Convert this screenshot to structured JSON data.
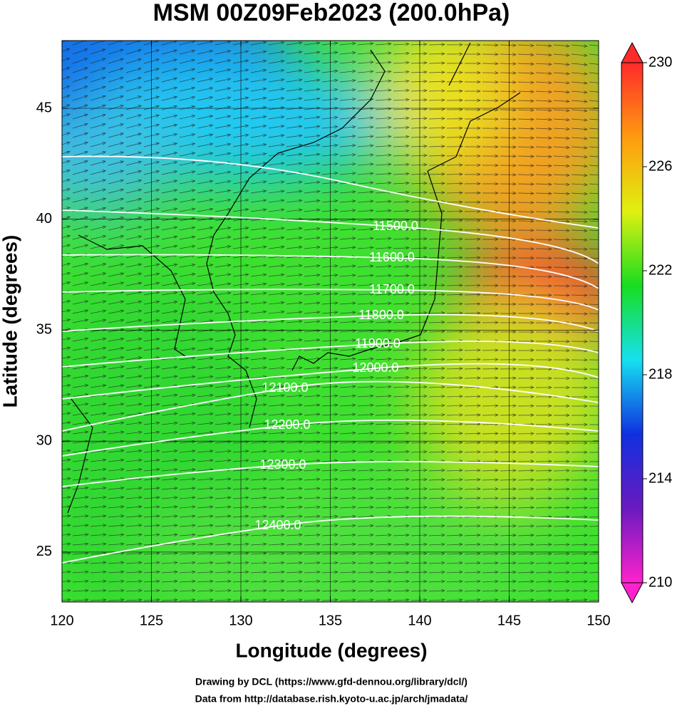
{
  "chart_data": {
    "type": "map",
    "title": "MSM 00Z09Feb2023 (200.0hPa)",
    "x_label": "Longitude (degrees)",
    "y_label": "Latitude  (degrees)",
    "xlim": [
      120,
      150
    ],
    "ylim": [
      22.75,
      48.05
    ],
    "xticks": [
      120,
      125,
      130,
      135,
      140,
      145,
      150
    ],
    "yticks": [
      25,
      30,
      35,
      40,
      45
    ],
    "grid": true,
    "contours": {
      "values": [
        11500,
        11600,
        11700,
        11800,
        11900,
        12000,
        12100,
        12200,
        12300,
        12400
      ],
      "value_labels": [
        "11500.0",
        "11600.0",
        "11700.0",
        "11800.0",
        "11900.0",
        "12000.0",
        "12100.0",
        "12200.0",
        "12300.0",
        "12400.0"
      ],
      "color": "#ffffff"
    },
    "colorbar": {
      "lim": [
        210,
        230
      ],
      "ticks": [
        210,
        214,
        218,
        222,
        226,
        230
      ],
      "colors": [
        "#ff22cc",
        "#6a1ac0",
        "#1030e0",
        "#16e0f0",
        "#18dd20",
        "#e0f010",
        "#ff9a10",
        "#ff2a2a"
      ]
    },
    "footer": [
      "Drawing by DCL (https://www.gfd-dennou.org/library/dcl/)",
      "Data from http://database.rish.kyoto-u.ac.jp/arch/jmadata/"
    ]
  }
}
